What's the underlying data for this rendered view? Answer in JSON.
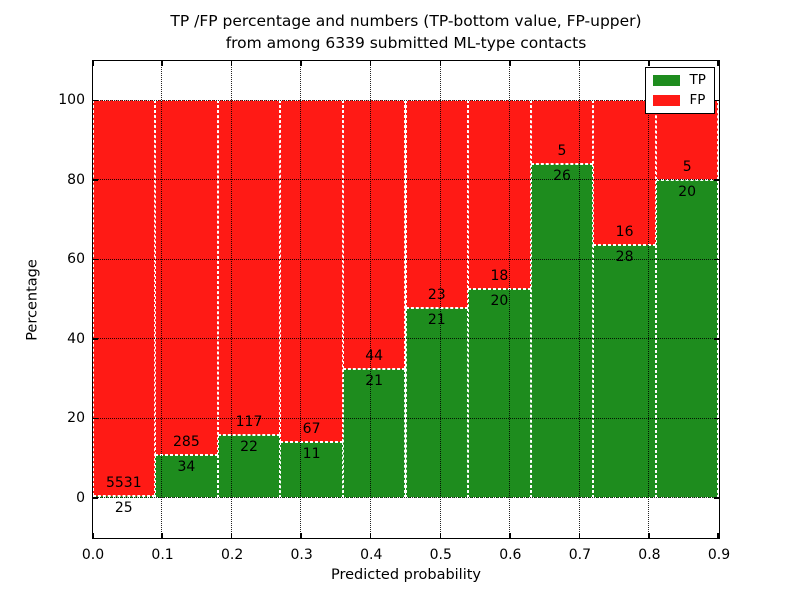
{
  "chart_data": {
    "type": "bar",
    "stacking": "percent",
    "title_line1": "TP /FP percentage and numbers (TP-bottom value, FP-upper)",
    "title_line2": "from among 6339 submitted ML-type contacts",
    "xlabel": "Predicted probability",
    "ylabel": "Percentage",
    "x_tick_labels": [
      "0.0",
      "0.1",
      "0.2",
      "0.3",
      "0.4",
      "0.5",
      "0.6",
      "0.7",
      "0.8",
      "0.9"
    ],
    "y_tick_values": [
      0,
      20,
      40,
      60,
      80,
      100
    ],
    "y_tick_labels": [
      "0",
      "20",
      "40",
      "60",
      "80",
      "100"
    ],
    "ylim": [
      -10,
      110
    ],
    "grid": true,
    "bins": 10,
    "total_contacts": 6339,
    "series": [
      {
        "name": "TP",
        "color": "#1e8c1e",
        "values": [
          25,
          34,
          22,
          11,
          21,
          21,
          20,
          26,
          28,
          20
        ]
      },
      {
        "name": "FP",
        "color": "#ff1a15",
        "values": [
          5531,
          285,
          117,
          67,
          44,
          23,
          18,
          5,
          16,
          5
        ]
      }
    ],
    "tp_percentages": [
      0.45,
      10.66,
      15.83,
      14.1,
      32.31,
      47.73,
      52.63,
      83.87,
      63.64,
      80.0
    ],
    "legend": {
      "position": "upper right",
      "entries": [
        {
          "label": "TP",
          "color": "#1e8c1e"
        },
        {
          "label": "FP",
          "color": "#ff1a15"
        }
      ]
    }
  }
}
